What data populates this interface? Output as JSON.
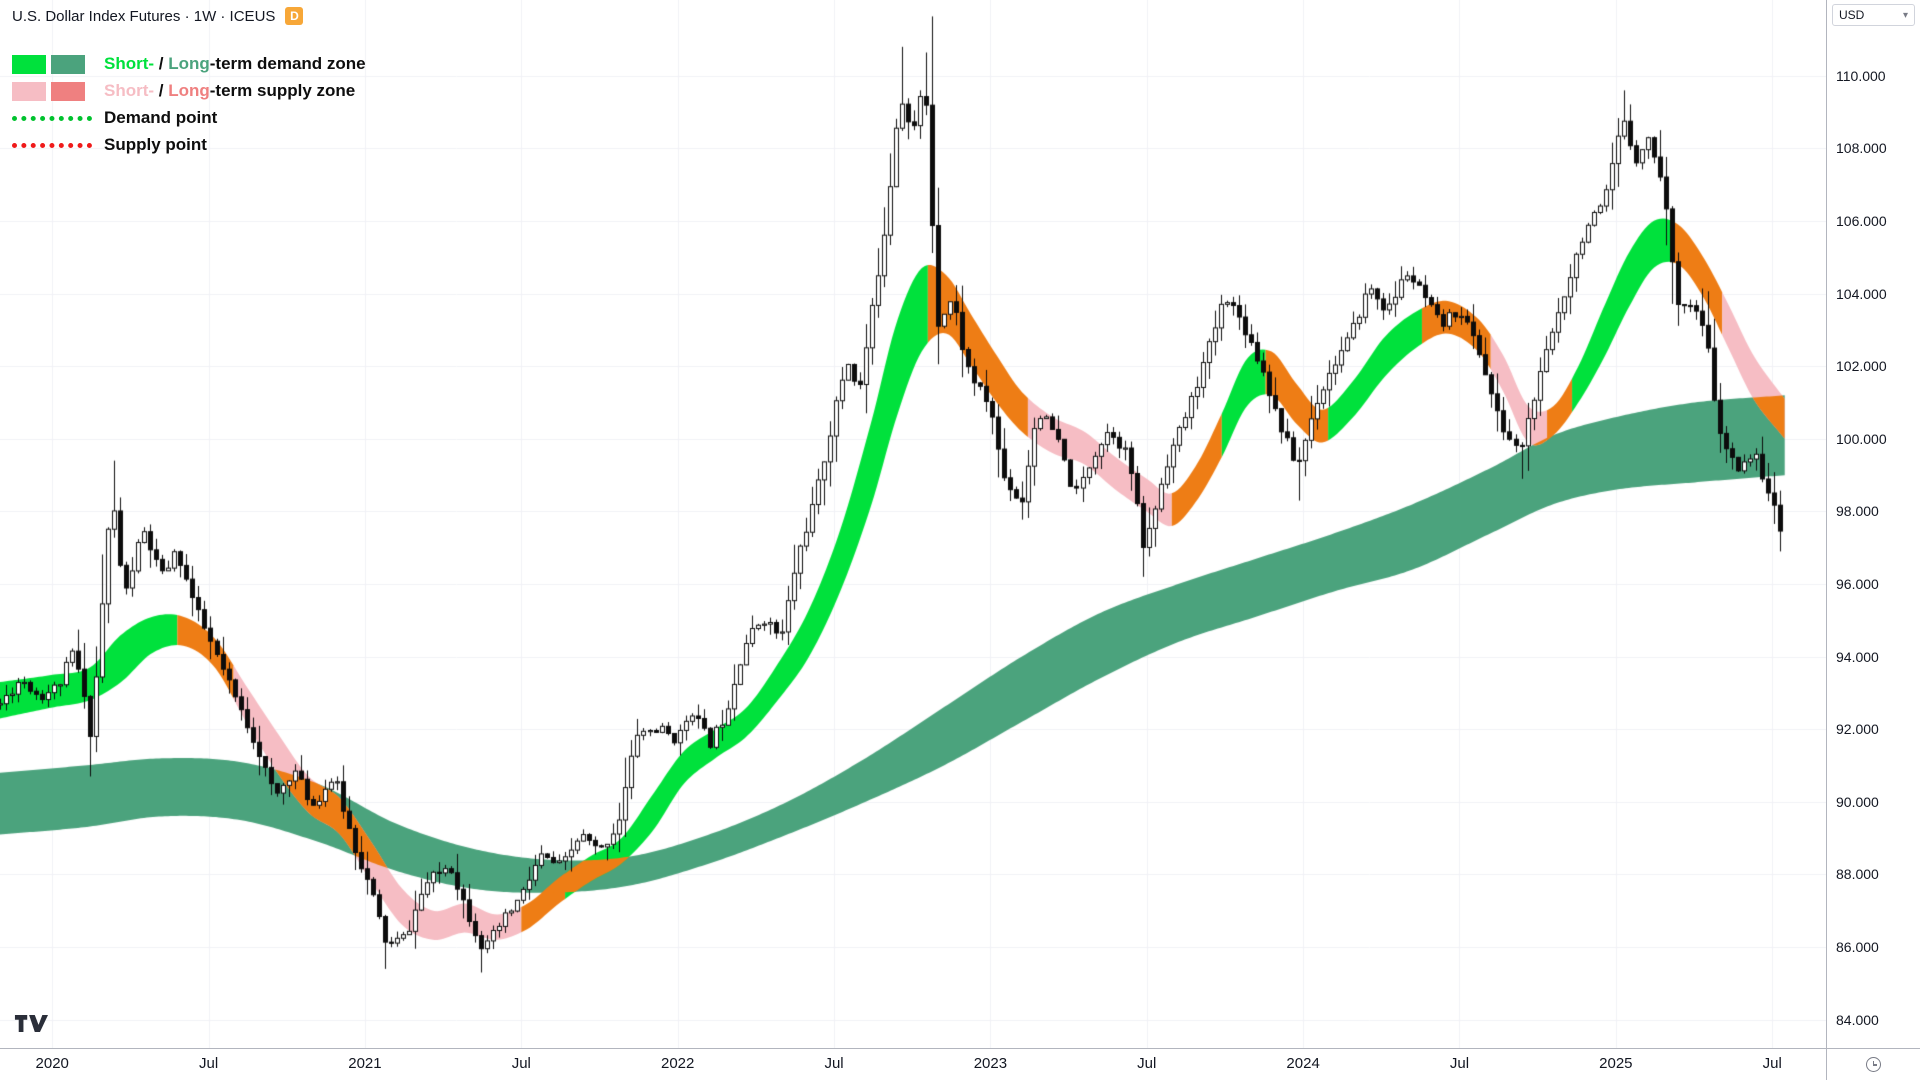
{
  "header": {
    "symbol": "U.S. Dollar Index Futures · 1W · ICEUS",
    "badge": "D"
  },
  "legend": {
    "demand": {
      "short": "Short-",
      "sep": " / ",
      "long": "Long",
      "rest": "-term demand zone"
    },
    "supply": {
      "short": "Short-",
      "sep": " / ",
      "long": "Long",
      "rest": "-term supply zone"
    },
    "demand_point": "Demand point",
    "supply_point": "Supply point"
  },
  "currency_selector": {
    "value": "USD",
    "chevron": "▾"
  },
  "palette": {
    "short_demand": "#00e13c",
    "long_demand": "#4ba37d",
    "short_supply": "#f6bdc4",
    "long_supply": "#ef8080",
    "overlap_orange": "#ee7d15",
    "demand_point": "#00c22e",
    "supply_point": "#ef1a1a",
    "candle": "#0c0c0c",
    "candle_up": "#ffffff",
    "grid": "#f0f2f6",
    "axis_border": "#b2b5be",
    "text": "#131722"
  },
  "axes": {
    "price_ticks": [
      "110.000",
      "108.000",
      "106.000",
      "104.000",
      "102.000",
      "100.000",
      "98.000",
      "96.000",
      "94.000",
      "92.000",
      "90.000",
      "88.000",
      "86.000",
      "84.000"
    ],
    "time_ticks": [
      {
        "t": 2020.0,
        "label": "2020"
      },
      {
        "t": 2020.5,
        "label": "Jul"
      },
      {
        "t": 2021.0,
        "label": "2021"
      },
      {
        "t": 2021.5,
        "label": "Jul"
      },
      {
        "t": 2022.0,
        "label": "2022"
      },
      {
        "t": 2022.5,
        "label": "Jul"
      },
      {
        "t": 2023.0,
        "label": "2023"
      },
      {
        "t": 2023.5,
        "label": "Jul"
      },
      {
        "t": 2024.0,
        "label": "2024"
      },
      {
        "t": 2024.5,
        "label": "Jul"
      },
      {
        "t": 2025.0,
        "label": "2025"
      },
      {
        "t": 2025.5,
        "label": "Jul"
      }
    ]
  },
  "chart_data": {
    "type": "candlestick",
    "title": "U.S. Dollar Index Futures",
    "timeframe": "1W",
    "exchange": "ICEUS",
    "currency": "USD",
    "x_domain": [
      2019.833,
      2025.672
    ],
    "y_domain": [
      83.22,
      112.09
    ],
    "noise_seed": 11,
    "close_anchors": [
      [
        2019.833,
        92.7
      ],
      [
        2019.9,
        93.4
      ],
      [
        2019.96,
        92.9
      ],
      [
        2020.02,
        93.2
      ],
      [
        2020.07,
        94.2
      ],
      [
        2020.125,
        91.8
      ],
      [
        2020.19,
        98.6
      ],
      [
        2020.23,
        95.6
      ],
      [
        2020.29,
        97.5
      ],
      [
        2020.35,
        96.2
      ],
      [
        2020.4,
        96.9
      ],
      [
        2020.46,
        95.3
      ],
      [
        2020.52,
        94.1
      ],
      [
        2020.58,
        92.9
      ],
      [
        2020.65,
        91.6
      ],
      [
        2020.71,
        90.1
      ],
      [
        2020.77,
        90.9
      ],
      [
        2020.83,
        89.9
      ],
      [
        2020.9,
        90.7
      ],
      [
        2020.96,
        88.9
      ],
      [
        2021.02,
        87.5
      ],
      [
        2021.07,
        86.0
      ],
      [
        2021.13,
        86.3
      ],
      [
        2021.19,
        87.7
      ],
      [
        2021.27,
        88.3
      ],
      [
        2021.33,
        86.9
      ],
      [
        2021.38,
        85.9
      ],
      [
        2021.44,
        86.7
      ],
      [
        2021.5,
        87.4
      ],
      [
        2021.56,
        88.5
      ],
      [
        2021.63,
        88.2
      ],
      [
        2021.69,
        89.1
      ],
      [
        2021.75,
        88.6
      ],
      [
        2021.81,
        89.4
      ],
      [
        2021.87,
        91.9
      ],
      [
        2021.94,
        92.0
      ],
      [
        2022.0,
        91.7
      ],
      [
        2022.04,
        92.6
      ],
      [
        2022.1,
        91.6
      ],
      [
        2022.15,
        92.4
      ],
      [
        2022.21,
        94.3
      ],
      [
        2022.27,
        95.1
      ],
      [
        2022.33,
        94.5
      ],
      [
        2022.38,
        96.7
      ],
      [
        2022.44,
        98.4
      ],
      [
        2022.5,
        100.7
      ],
      [
        2022.54,
        102.2
      ],
      [
        2022.58,
        101.3
      ],
      [
        2022.63,
        104.0
      ],
      [
        2022.67,
        106.3
      ],
      [
        2022.71,
        109.6
      ],
      [
        2022.75,
        108.3
      ],
      [
        2022.79,
        110.0
      ],
      [
        2022.83,
        103.2
      ],
      [
        2022.88,
        103.9
      ],
      [
        2022.92,
        102.1
      ],
      [
        2022.96,
        101.4
      ],
      [
        2023.0,
        100.9
      ],
      [
        2023.04,
        99.0
      ],
      [
        2023.1,
        98.2
      ],
      [
        2023.15,
        100.8
      ],
      [
        2023.21,
        100.1
      ],
      [
        2023.27,
        98.4
      ],
      [
        2023.33,
        99.6
      ],
      [
        2023.38,
        100.3
      ],
      [
        2023.44,
        99.5
      ],
      [
        2023.49,
        96.9
      ],
      [
        2023.56,
        99.3
      ],
      [
        2023.63,
        100.8
      ],
      [
        2023.69,
        102.3
      ],
      [
        2023.75,
        104.0
      ],
      [
        2023.81,
        103.1
      ],
      [
        2023.87,
        101.9
      ],
      [
        2023.92,
        100.5
      ],
      [
        2023.98,
        99.2
      ],
      [
        2024.04,
        101.0
      ],
      [
        2024.1,
        102.1
      ],
      [
        2024.15,
        102.8
      ],
      [
        2024.21,
        104.2
      ],
      [
        2024.27,
        103.5
      ],
      [
        2024.33,
        104.6
      ],
      [
        2024.38,
        104.0
      ],
      [
        2024.44,
        103.1
      ],
      [
        2024.5,
        103.6
      ],
      [
        2024.56,
        102.5
      ],
      [
        2024.63,
        100.4
      ],
      [
        2024.69,
        99.6
      ],
      [
        2024.73,
        100.9
      ],
      [
        2024.79,
        102.8
      ],
      [
        2024.85,
        104.5
      ],
      [
        2024.9,
        105.8
      ],
      [
        2024.96,
        106.4
      ],
      [
        2025.02,
        108.8
      ],
      [
        2025.06,
        107.7
      ],
      [
        2025.1,
        108.3
      ],
      [
        2025.15,
        107.1
      ],
      [
        2025.19,
        103.9
      ],
      [
        2025.25,
        103.6
      ],
      [
        2025.29,
        102.7
      ],
      [
        2025.33,
        100.1
      ],
      [
        2025.38,
        99.2
      ],
      [
        2025.44,
        99.6
      ],
      [
        2025.48,
        98.8
      ],
      [
        2025.53,
        97.3
      ]
    ],
    "wick_overrides": [
      {
        "t": 2020.125,
        "low": 90.7
      },
      {
        "t": 2020.19,
        "high": 99.4
      },
      {
        "t": 2021.07,
        "low": 85.4
      },
      {
        "t": 2021.38,
        "low": 85.3
      },
      {
        "t": 2022.71,
        "high": 110.8
      },
      {
        "t": 2022.79,
        "high": 110.3
      },
      {
        "t": 2023.49,
        "low": 96.2
      },
      {
        "t": 2023.98,
        "low": 98.3
      },
      {
        "t": 2024.69,
        "low": 98.9
      },
      {
        "t": 2025.02,
        "high": 109.6
      },
      {
        "t": 2025.53,
        "low": 96.9
      }
    ],
    "bands": {
      "long_term": {
        "color": "long_demand",
        "points": [
          [
            2019.833,
            90.8,
            89.1
          ],
          [
            2020.1,
            91.0,
            89.3
          ],
          [
            2020.35,
            91.2,
            89.6
          ],
          [
            2020.6,
            91.1,
            89.5
          ],
          [
            2020.85,
            90.5,
            88.9
          ],
          [
            2021.1,
            89.4,
            88.1
          ],
          [
            2021.35,
            88.7,
            87.6
          ],
          [
            2021.6,
            88.4,
            87.5
          ],
          [
            2021.85,
            88.5,
            87.7
          ],
          [
            2022.1,
            89.1,
            88.3
          ],
          [
            2022.35,
            90.0,
            89.1
          ],
          [
            2022.6,
            91.2,
            90.0
          ],
          [
            2022.85,
            92.6,
            91.0
          ],
          [
            2023.1,
            94.0,
            92.2
          ],
          [
            2023.35,
            95.2,
            93.4
          ],
          [
            2023.6,
            96.0,
            94.4
          ],
          [
            2023.85,
            96.7,
            95.1
          ],
          [
            2024.1,
            97.4,
            95.8
          ],
          [
            2024.35,
            98.2,
            96.4
          ],
          [
            2024.6,
            99.2,
            97.4
          ],
          [
            2024.8,
            100.1,
            98.2
          ],
          [
            2025.0,
            100.6,
            98.6
          ],
          [
            2025.25,
            101.0,
            98.8
          ],
          [
            2025.54,
            101.2,
            99.0
          ]
        ]
      },
      "short_term": {
        "points": [
          [
            2019.833,
            93.3,
            92.3
          ],
          [
            2020.0,
            93.5,
            92.6
          ],
          [
            2020.12,
            93.7,
            92.8
          ],
          [
            2020.22,
            94.6,
            93.3
          ],
          [
            2020.32,
            95.1,
            94.1
          ],
          [
            2020.42,
            95.1,
            94.3
          ],
          [
            2020.52,
            94.5,
            93.7
          ],
          [
            2020.62,
            93.2,
            92.2
          ],
          [
            2020.72,
            91.9,
            90.8
          ],
          [
            2020.82,
            90.7,
            89.7
          ],
          [
            2020.92,
            90.1,
            89.1
          ],
          [
            2021.02,
            88.9,
            87.8
          ],
          [
            2021.12,
            87.6,
            86.6
          ],
          [
            2021.22,
            87.0,
            86.2
          ],
          [
            2021.32,
            87.2,
            86.4
          ],
          [
            2021.42,
            86.9,
            86.2
          ],
          [
            2021.52,
            87.2,
            86.5
          ],
          [
            2021.62,
            87.9,
            87.2
          ],
          [
            2021.72,
            88.5,
            87.8
          ],
          [
            2021.82,
            89.0,
            88.3
          ],
          [
            2021.92,
            90.2,
            89.2
          ],
          [
            2022.02,
            91.4,
            90.5
          ],
          [
            2022.12,
            92.0,
            91.2
          ],
          [
            2022.22,
            92.6,
            91.8
          ],
          [
            2022.32,
            93.8,
            92.8
          ],
          [
            2022.42,
            95.3,
            94.0
          ],
          [
            2022.52,
            97.5,
            95.8
          ],
          [
            2022.62,
            100.5,
            98.2
          ],
          [
            2022.7,
            103.2,
            100.6
          ],
          [
            2022.78,
            104.7,
            102.4
          ],
          [
            2022.86,
            104.5,
            102.9
          ],
          [
            2022.94,
            103.4,
            102.0
          ],
          [
            2023.02,
            102.3,
            101.0
          ],
          [
            2023.1,
            101.3,
            100.2
          ],
          [
            2023.2,
            100.6,
            99.6
          ],
          [
            2023.3,
            100.2,
            99.3
          ],
          [
            2023.4,
            99.5,
            98.6
          ],
          [
            2023.5,
            98.9,
            98.0
          ],
          [
            2023.58,
            98.5,
            97.6
          ],
          [
            2023.66,
            99.3,
            98.3
          ],
          [
            2023.74,
            100.7,
            99.5
          ],
          [
            2023.82,
            102.2,
            100.9
          ],
          [
            2023.9,
            102.4,
            101.2
          ],
          [
            2023.98,
            101.5,
            100.4
          ],
          [
            2024.06,
            100.8,
            99.9
          ],
          [
            2024.16,
            101.6,
            100.6
          ],
          [
            2024.26,
            102.8,
            101.7
          ],
          [
            2024.36,
            103.5,
            102.5
          ],
          [
            2024.46,
            103.8,
            102.9
          ],
          [
            2024.56,
            103.3,
            102.4
          ],
          [
            2024.64,
            102.3,
            101.3
          ],
          [
            2024.72,
            100.9,
            99.9
          ],
          [
            2024.8,
            100.9,
            100.1
          ],
          [
            2024.88,
            102.0,
            101.0
          ],
          [
            2024.96,
            103.6,
            102.2
          ],
          [
            2025.04,
            105.1,
            103.6
          ],
          [
            2025.12,
            106.0,
            104.7
          ],
          [
            2025.2,
            105.9,
            104.8
          ],
          [
            2025.28,
            105.0,
            103.9
          ],
          [
            2025.36,
            103.7,
            102.5
          ],
          [
            2025.44,
            102.3,
            101.1
          ],
          [
            2025.54,
            101.1,
            100.0
          ]
        ],
        "segments": [
          {
            "until": 2020.4,
            "color": "short_demand"
          },
          {
            "until": 2020.58,
            "color": "overlap_orange"
          },
          {
            "until": 2021.5,
            "color": "short_supply"
          },
          {
            "until": 2021.64,
            "color": "overlap_orange"
          },
          {
            "until": 2022.8,
            "color": "short_demand"
          },
          {
            "until": 2023.12,
            "color": "overlap_orange"
          },
          {
            "until": 2023.58,
            "color": "short_supply"
          },
          {
            "until": 2023.74,
            "color": "overlap_orange"
          },
          {
            "until": 2023.88,
            "color": "short_demand"
          },
          {
            "until": 2024.08,
            "color": "overlap_orange"
          },
          {
            "until": 2024.38,
            "color": "short_demand"
          },
          {
            "until": 2024.6,
            "color": "overlap_orange"
          },
          {
            "until": 2024.78,
            "color": "short_supply"
          },
          {
            "until": 2024.86,
            "color": "overlap_orange"
          },
          {
            "until": 2025.18,
            "color": "short_demand"
          },
          {
            "until": 2025.34,
            "color": "overlap_orange"
          },
          {
            "until": 2025.6,
            "color": "short_supply"
          }
        ]
      }
    }
  }
}
